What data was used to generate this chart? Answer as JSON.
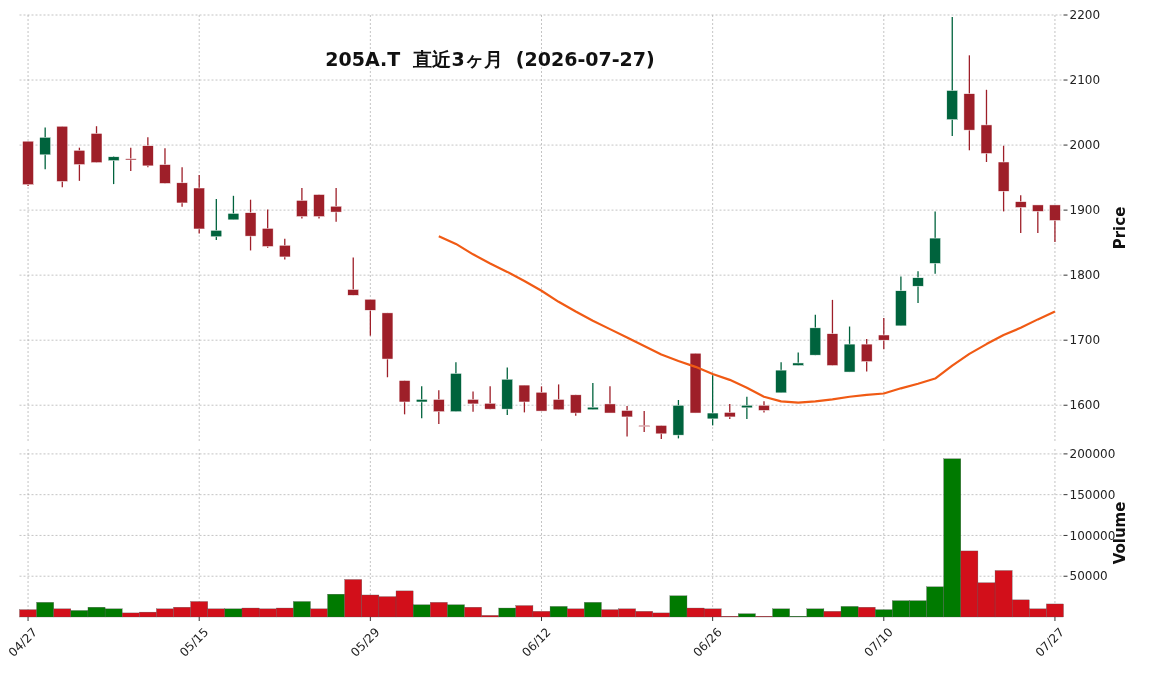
{
  "chart_data": [
    {
      "type": "candlestick",
      "title": "205A.T  直近3ヶ月  (2026-07-27)",
      "ylabel": "Price",
      "categories": [
        null,
        null,
        null,
        null,
        null,
        null,
        null,
        null,
        null,
        null,
        null,
        null,
        null,
        null,
        null,
        null,
        null,
        null,
        null,
        null,
        null,
        null,
        null,
        null,
        null,
        null,
        null,
        null,
        null,
        null,
        null,
        null,
        null,
        null,
        null,
        null,
        null,
        null,
        null,
        null,
        null,
        null,
        null,
        null,
        null,
        null,
        null,
        null,
        null,
        null,
        null,
        null,
        null,
        null,
        null,
        null,
        null,
        null,
        null,
        null,
        null
      ],
      "ohlc": [
        [
          2006,
          2006,
          1937,
          1939
        ],
        [
          1985,
          2027,
          1963,
          2012
        ],
        [
          2029,
          2029,
          1935,
          1944
        ],
        [
          1992,
          1996,
          1945,
          1970
        ],
        [
          2018,
          2029,
          1973,
          1973
        ],
        [
          1976,
          1983,
          1940,
          1982
        ],
        [
          1979,
          1996,
          1960,
          1978
        ],
        [
          1999,
          2012,
          1966,
          1968
        ],
        [
          1970,
          1995,
          1941,
          1941
        ],
        [
          1942,
          1966,
          1905,
          1911
        ],
        [
          1934,
          1954,
          1864,
          1871
        ],
        [
          1859,
          1917,
          1854,
          1869
        ],
        [
          1885,
          1922,
          1885,
          1895
        ],
        [
          1896,
          1916,
          1838,
          1860
        ],
        [
          1872,
          1901,
          1842,
          1844
        ],
        [
          1846,
          1856,
          1824,
          1828
        ],
        [
          1915,
          1934,
          1887,
          1890
        ],
        [
          1924,
          1924,
          1887,
          1890
        ],
        [
          1906,
          1934,
          1882,
          1897
        ],
        [
          1778,
          1827,
          1769,
          1769
        ],
        [
          1763,
          1763,
          1707,
          1746
        ],
        [
          1742,
          1742,
          1643,
          1671
        ],
        [
          1638,
          1638,
          1586,
          1605
        ],
        [
          1605,
          1629,
          1580,
          1609
        ],
        [
          1609,
          1623,
          1571,
          1590
        ],
        [
          1590,
          1666,
          1590,
          1649
        ],
        [
          1609,
          1621,
          1590,
          1602
        ],
        [
          1603,
          1629,
          1594,
          1594
        ],
        [
          1594,
          1658,
          1585,
          1640
        ],
        [
          1631,
          1631,
          1589,
          1605
        ],
        [
          1620,
          1629,
          1591,
          1591
        ],
        [
          1609,
          1632,
          1593,
          1593
        ],
        [
          1616,
          1616,
          1584,
          1588
        ],
        [
          1593,
          1634,
          1593,
          1597
        ],
        [
          1602,
          1629,
          1588,
          1588
        ],
        [
          1592,
          1599,
          1552,
          1582
        ],
        [
          1569,
          1591,
          1559,
          1568
        ],
        [
          1569,
          1569,
          1548,
          1556
        ],
        [
          1554,
          1608,
          1549,
          1600
        ],
        [
          1680,
          1680,
          1588,
          1588
        ],
        [
          1579,
          1646,
          1569,
          1588
        ],
        [
          1589,
          1602,
          1579,
          1582
        ],
        [
          1596,
          1613,
          1579,
          1600
        ],
        [
          1600,
          1606,
          1589,
          1592
        ],
        [
          1619,
          1666,
          1619,
          1654
        ],
        [
          1661,
          1681,
          1661,
          1665
        ],
        [
          1677,
          1739,
          1677,
          1719
        ],
        [
          1710,
          1762,
          1661,
          1661
        ],
        [
          1651,
          1721,
          1651,
          1694
        ],
        [
          1694,
          1702,
          1652,
          1667
        ],
        [
          1708,
          1734,
          1686,
          1700
        ],
        [
          1722,
          1798,
          1722,
          1776
        ],
        [
          1783,
          1806,
          1757,
          1796
        ],
        [
          1818,
          1898,
          1802,
          1857
        ],
        [
          2039,
          2197,
          2014,
          2084
        ],
        [
          2079,
          2138,
          1992,
          2023
        ],
        [
          2031,
          2085,
          1974,
          1987
        ],
        [
          1974,
          1999,
          1898,
          1929
        ],
        [
          1913,
          1923,
          1865,
          1904
        ],
        [
          1908,
          1908,
          1865,
          1898
        ],
        [
          1908,
          1908,
          1851,
          1884
        ]
      ],
      "colors": [
        "#9e1f29",
        "#00633d",
        "#9e1f29",
        "#9e1f29",
        "#9e1f29",
        "#00633d",
        "#9e1f29",
        "#9e1f29",
        "#9e1f29",
        "#9e1f29",
        "#9e1f29",
        "#00633d",
        "#00633d",
        "#9e1f29",
        "#9e1f29",
        "#9e1f29",
        "#9e1f29",
        "#9e1f29",
        "#9e1f29",
        "#9e1f29",
        "#9e1f29",
        "#9e1f29",
        "#9e1f29",
        "#00633d",
        "#9e1f29",
        "#00633d",
        "#9e1f29",
        "#9e1f29",
        "#00633d",
        "#9e1f29",
        "#9e1f29",
        "#9e1f29",
        "#9e1f29",
        "#00633d",
        "#9e1f29",
        "#9e1f29",
        "#9e1f29",
        "#9e1f29",
        "#00633d",
        "#9e1f29",
        "#00633d",
        "#9e1f29",
        "#00633d",
        "#9e1f29",
        "#00633d",
        "#00633d",
        "#00633d",
        "#9e1f29",
        "#00633d",
        "#9e1f29",
        "#9e1f29",
        "#00633d",
        "#00633d",
        "#00633d",
        "#00633d",
        "#9e1f29",
        "#9e1f29",
        "#9e1f29",
        "#9e1f29",
        "#9e1f29",
        "#9e1f29"
      ],
      "series": [
        {
          "type": "line",
          "color": "#f05a14",
          "values": [
            null,
            null,
            null,
            null,
            null,
            null,
            null,
            null,
            null,
            null,
            null,
            null,
            null,
            null,
            null,
            null,
            null,
            null,
            null,
            null,
            null,
            null,
            null,
            null,
            1860,
            1848,
            1832,
            1818,
            1805,
            1791,
            1776,
            1759,
            1744,
            1730,
            1717,
            1704,
            1691,
            1678,
            1668,
            1659,
            1648,
            1639,
            1627,
            1613,
            1606,
            1604,
            1606,
            1609,
            1613,
            1616,
            1618,
            1626,
            1633,
            1641,
            1661,
            1679,
            1694,
            1708,
            1719,
            1732,
            1744
          ]
        }
      ],
      "ylim": [
        1545,
        2200
      ],
      "yticks": [
        1600,
        1700,
        1800,
        1900,
        2000,
        2100,
        2200
      ],
      "grid": true,
      "tick_labels": "y"
    },
    {
      "type": "bar",
      "ylabel": "Volume",
      "categories": [
        "04/27",
        null,
        null,
        null,
        null,
        null,
        null,
        null,
        null,
        null,
        "05/15",
        null,
        null,
        null,
        null,
        null,
        null,
        null,
        null,
        null,
        "05/29",
        null,
        null,
        null,
        null,
        null,
        null,
        null,
        null,
        null,
        "06/12",
        null,
        null,
        null,
        null,
        null,
        null,
        null,
        null,
        null,
        "06/26",
        null,
        null,
        null,
        null,
        null,
        null,
        null,
        null,
        null,
        "07/10",
        null,
        null,
        null,
        null,
        null,
        null,
        null,
        null,
        null,
        "07/27"
      ],
      "values": [
        9000,
        18000,
        10000,
        8000,
        12000,
        10000,
        5000,
        6000,
        10000,
        12000,
        19000,
        10000,
        10000,
        11000,
        10000,
        11000,
        19000,
        10000,
        28000,
        46000,
        27000,
        25000,
        32000,
        15000,
        18000,
        15000,
        12000,
        2000,
        11000,
        14000,
        7000,
        13000,
        10000,
        18000,
        9000,
        10000,
        7000,
        5000,
        26000,
        11000,
        10000,
        1000,
        4000,
        1000,
        10000,
        1000,
        10000,
        7000,
        13000,
        12000,
        9000,
        20000,
        20000,
        37000,
        194000,
        81000,
        42000,
        57000,
        21000,
        10000,
        16000
      ],
      "colors": [
        "#d20f1a",
        "#007a00",
        "#d20f1a",
        "#007a00",
        "#007a00",
        "#007a00",
        "#d20f1a",
        "#d20f1a",
        "#d20f1a",
        "#d20f1a",
        "#d20f1a",
        "#d20f1a",
        "#007a00",
        "#d20f1a",
        "#d20f1a",
        "#d20f1a",
        "#007a00",
        "#d20f1a",
        "#007a00",
        "#d20f1a",
        "#d20f1a",
        "#d20f1a",
        "#d20f1a",
        "#007a00",
        "#d20f1a",
        "#007a00",
        "#d20f1a",
        "#d20f1a",
        "#007a00",
        "#d20f1a",
        "#d20f1a",
        "#007a00",
        "#d20f1a",
        "#007a00",
        "#d20f1a",
        "#d20f1a",
        "#d20f1a",
        "#d20f1a",
        "#007a00",
        "#d20f1a",
        "#d20f1a",
        "#d20f1a",
        "#007a00",
        "#d20f1a",
        "#007a00",
        "#007a00",
        "#007a00",
        "#d20f1a",
        "#007a00",
        "#d20f1a",
        "#007a00",
        "#007a00",
        "#007a00",
        "#007a00",
        "#007a00",
        "#d20f1a",
        "#d20f1a",
        "#d20f1a",
        "#d20f1a",
        "#d20f1a",
        "#d20f1a"
      ],
      "ylim": [
        0,
        206000
      ],
      "yticks": [
        50000,
        100000,
        150000,
        200000
      ],
      "grid": true
    }
  ]
}
